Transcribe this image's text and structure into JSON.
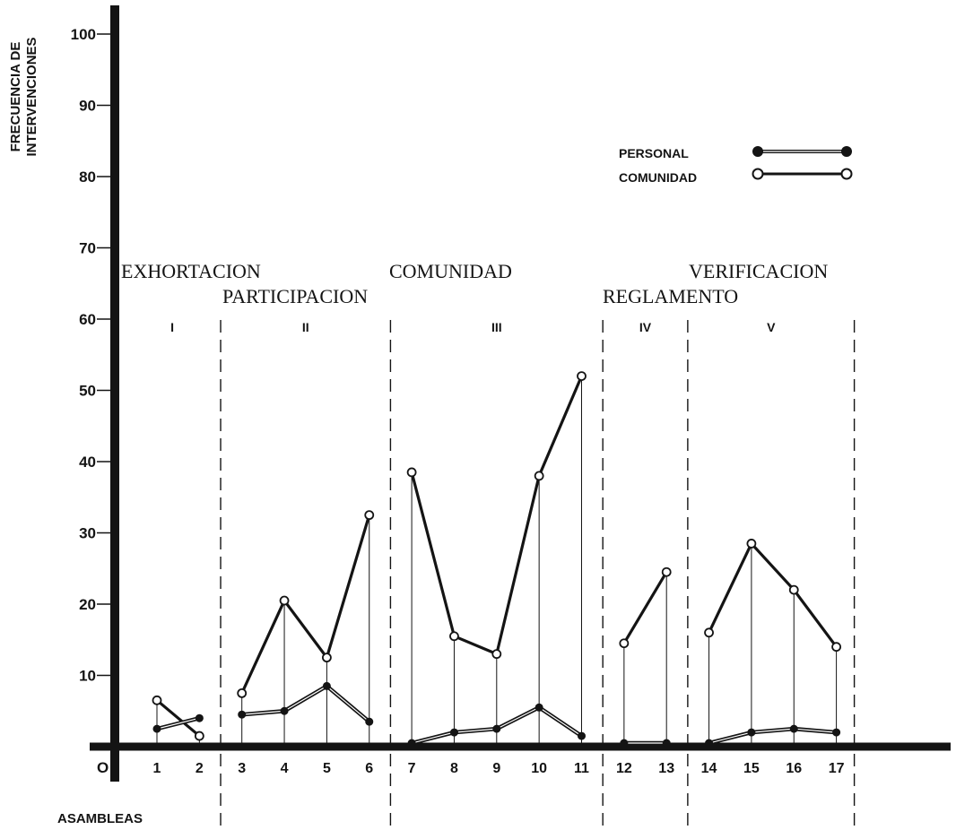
{
  "chart_data": {
    "type": "line",
    "ylabel_line1": "FRECUENCIA DE",
    "ylabel_line2": "INTERVENCIONES",
    "xlabel": "ASAMBLEAS",
    "origin_label": "O",
    "ylim": [
      0,
      100
    ],
    "yticks": [
      "10",
      "20",
      "30",
      "40",
      "50",
      "60",
      "70",
      "80",
      "90",
      "100"
    ],
    "categories": [
      "1",
      "2",
      "3",
      "4",
      "5",
      "6",
      "7",
      "8",
      "9",
      "10",
      "11",
      "12",
      "13",
      "14",
      "15",
      "16",
      "17"
    ],
    "grid": false,
    "legend_position": "top-right",
    "series": [
      {
        "name": "PERSONAL",
        "marker": "filled",
        "values": [
          2.5,
          4,
          4.5,
          5,
          8.5,
          3.5,
          0.5,
          2,
          2.5,
          5.5,
          1.5,
          0.5,
          0.5,
          0.5,
          2,
          2.5,
          2
        ]
      },
      {
        "name": "COMUNIDAD",
        "marker": "open",
        "values": [
          6.5,
          1.5,
          7.5,
          20.5,
          12.5,
          32.5,
          38.5,
          15.5,
          13,
          38,
          52,
          14.5,
          24.5,
          16,
          28.5,
          22,
          14
        ]
      }
    ],
    "segments": [
      [
        1,
        2
      ],
      [
        3,
        4,
        5,
        6
      ],
      [
        7,
        8,
        9,
        10,
        11
      ],
      [
        12,
        13
      ],
      [
        14,
        15,
        16,
        17
      ]
    ],
    "stages": [
      {
        "numeral": "I"
      },
      {
        "numeral": "II"
      },
      {
        "numeral": "III"
      },
      {
        "numeral": "IV"
      },
      {
        "numeral": "V"
      }
    ],
    "stage_titles": [
      "EXHORTACION",
      "PARTICIPACION",
      "COMUNIDAD",
      "REGLAMENTO",
      "VERIFICACION"
    ]
  },
  "colors": {
    "ink": "#141414",
    "paper": "#ffffff"
  }
}
